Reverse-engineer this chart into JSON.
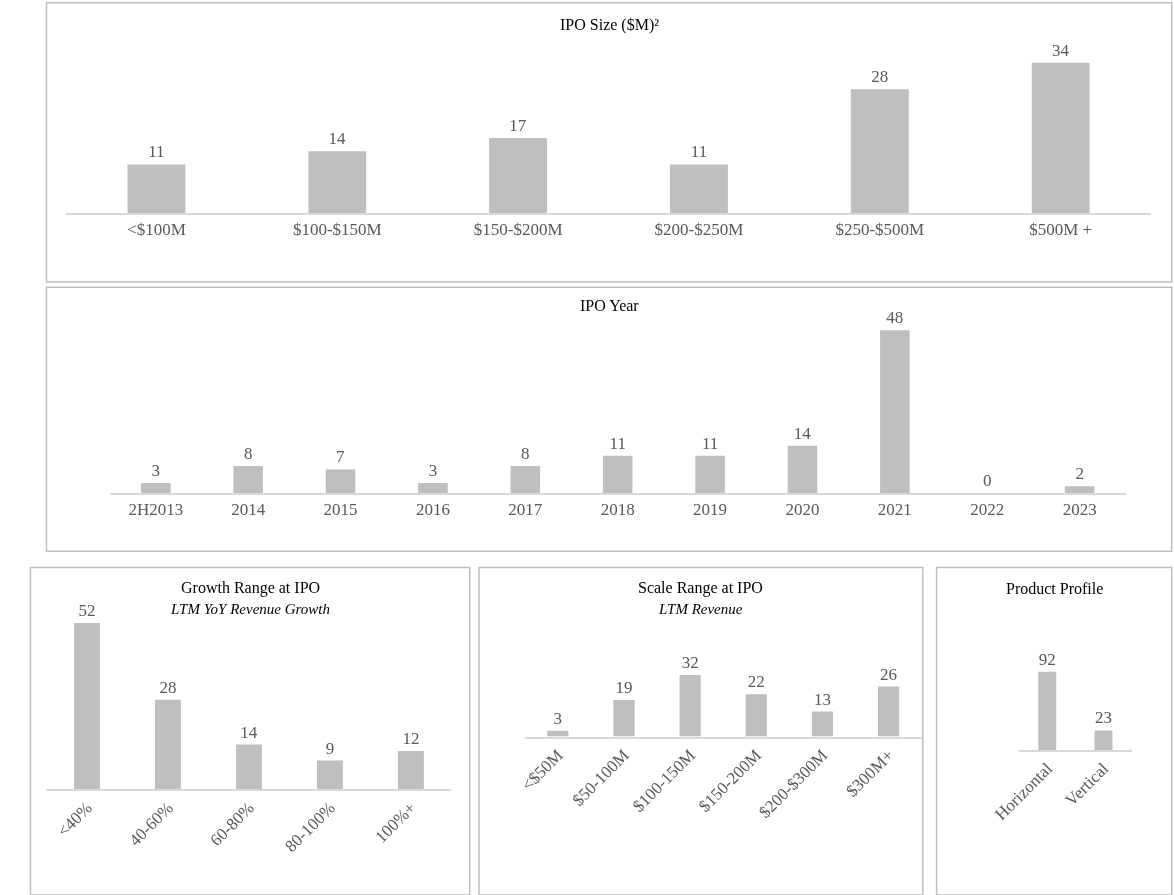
{
  "chart_data": [
    {
      "type": "bar",
      "title": "IPO Size ($M)²",
      "categories": [
        "<$100M",
        "$100-$150M",
        "$150-$200M",
        "$200-$250M",
        "$250-$500M",
        "$500M +"
      ],
      "values": [
        11,
        14,
        17,
        11,
        28,
        34
      ],
      "color": "#bfbfbf",
      "data_labels": true
    },
    {
      "type": "bar",
      "title": "IPO Year",
      "categories": [
        "2H2013",
        "2014",
        "2015",
        "2016",
        "2017",
        "2018",
        "2019",
        "2020",
        "2021",
        "2022",
        "2023"
      ],
      "values": [
        3,
        8,
        7,
        3,
        8,
        11,
        11,
        14,
        48,
        0,
        2
      ],
      "color": "#bfbfbf",
      "data_labels": true
    },
    {
      "type": "bar",
      "title": "Growth Range at IPO",
      "subtitle": "LTM YoY Revenue Growth",
      "categories": [
        "<40%",
        "40-60%",
        "60-80%",
        "80-100%",
        "100%+"
      ],
      "values": [
        52,
        28,
        14,
        9,
        12
      ],
      "color": "#bfbfbf",
      "data_labels": true
    },
    {
      "type": "bar",
      "title": "Scale Range at IPO",
      "subtitle": "LTM Revenue",
      "categories": [
        "<$50M",
        "$50-100M",
        "$100-150M",
        "$150-200M",
        "$200-$300M",
        "$300M+"
      ],
      "values": [
        3,
        19,
        32,
        22,
        13,
        26
      ],
      "color": "#bfbfbf",
      "data_labels": true
    },
    {
      "type": "bar",
      "title": "Product Profile",
      "categories": [
        "Horizontal",
        "Vertical"
      ],
      "values": [
        92,
        23
      ],
      "color": "#bfbfbf",
      "data_labels": true
    }
  ]
}
